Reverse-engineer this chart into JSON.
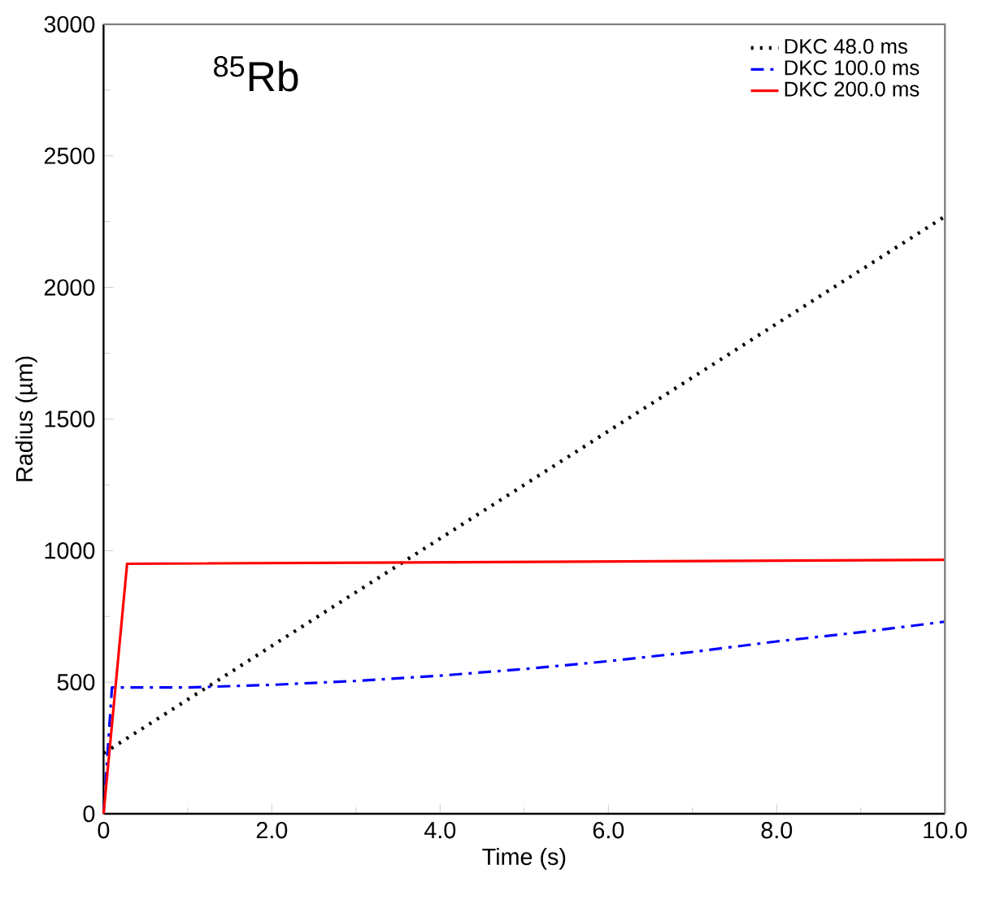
{
  "chart_data": {
    "type": "line",
    "xlabel": "Time (s)",
    "ylabel": "Radius (µm)",
    "annotations": [
      "$^{85}$Rb"
    ],
    "xlim": [
      0,
      10
    ],
    "xticks": [
      0,
      {
        "value": 2,
        "label": "2.0"
      },
      {
        "value": 4,
        "label": "4.0"
      },
      {
        "value": 6,
        "label": "6.0"
      },
      {
        "value": 8,
        "label": "8.0"
      },
      {
        "value": 10,
        "label": "10.0"
      }
    ],
    "ylim": [
      0,
      3000
    ],
    "yticks": [
      0,
      500,
      1000,
      1500,
      2000,
      2500,
      3000
    ],
    "grid": false,
    "legend": "top right",
    "marker": "none",
    "series": [
      {
        "name": "DKC  48.0 ms",
        "color": "#000000",
        "line_style": "dotted",
        "x": [
          0,
          10
        ],
        "values": [
          230,
          2270
        ]
      },
      {
        "name": "DKC 100.0 ms",
        "color": "#0000ff",
        "line_style": "dashdot",
        "x": [
          0,
          0.1,
          1,
          2,
          3,
          4,
          5,
          6,
          7,
          8,
          9,
          10
        ],
        "values": [
          0,
          480,
          480,
          490,
          505,
          525,
          550,
          580,
          615,
          655,
          690,
          730
        ]
      },
      {
        "name": "DKC 200.0 ms",
        "color": "#ff0000",
        "line_style": "solid",
        "x": [
          0,
          0.28,
          10
        ],
        "values": [
          0,
          950,
          965
        ]
      }
    ]
  }
}
